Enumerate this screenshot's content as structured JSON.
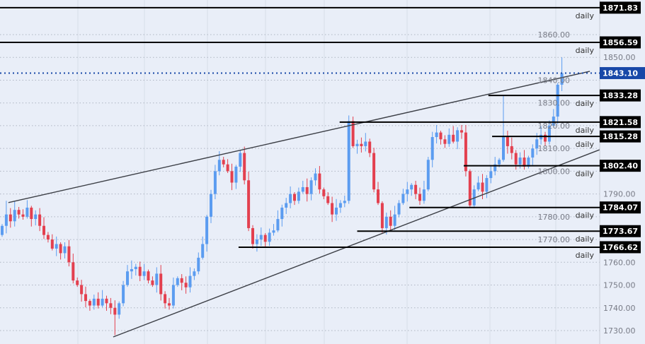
{
  "chart_data": {
    "type": "candlestick",
    "title": "",
    "xlabel": "",
    "ylabel": "",
    "ylim": [
      1726,
      1875
    ],
    "grid": true,
    "y_ticks": [
      "1730.00",
      "1740.00",
      "1750.00",
      "1760.00",
      "1770.00",
      "1780.00",
      "1790.00",
      "1800.00",
      "1810.00",
      "1820.00",
      "1830.00",
      "1840.00",
      "1850.00",
      "1860.00"
    ],
    "closes": [
      1776,
      1781,
      1778,
      1783,
      1781,
      1780,
      1784,
      1779,
      1781,
      1776,
      1772,
      1770,
      1766,
      1768,
      1764,
      1767,
      1760,
      1752,
      1750,
      1746,
      1743,
      1741,
      1744,
      1741,
      1744,
      1742,
      1740,
      1737,
      1742,
      1750,
      1756,
      1757,
      1758,
      1754,
      1756,
      1752,
      1750,
      1755,
      1746,
      1742,
      1741,
      1750,
      1753,
      1751,
      1749,
      1754,
      1756,
      1762,
      1768,
      1780,
      1790,
      1800,
      1805,
      1803,
      1800,
      1795,
      1802,
      1808,
      1796,
      1775,
      1768,
      1770,
      1772,
      1769,
      1773,
      1774,
      1779,
      1784,
      1786,
      1790,
      1787,
      1791,
      1793,
      1790,
      1796,
      1799,
      1792,
      1789,
      1786,
      1781,
      1784,
      1786,
      1787,
      1822,
      1811,
      1812,
      1811,
      1813,
      1808,
      1792,
      1786,
      1775,
      1780,
      1776,
      1781,
      1786,
      1790,
      1792,
      1794,
      1790,
      1787,
      1792,
      1805,
      1815,
      1817,
      1814,
      1812,
      1816,
      1813,
      1818,
      1817,
      1800,
      1785,
      1792,
      1795,
      1791,
      1797,
      1800,
      1803,
      1805,
      1815,
      1811,
      1808,
      1803,
      1806,
      1802,
      1806,
      1810,
      1814,
      1816,
      1813,
      1820,
      1824,
      1838,
      1843.1
    ],
    "first_open": 1772,
    "wick_overrides": [
      {
        "i": 1,
        "high": 1787
      },
      {
        "i": 27,
        "low": 1728
      },
      {
        "i": 57,
        "high": 1809
      },
      {
        "i": 60,
        "low": 1766
      },
      {
        "i": 83,
        "high": 1824.5
      },
      {
        "i": 84,
        "high": 1824
      },
      {
        "i": 91,
        "low": 1773
      },
      {
        "i": 112,
        "low": 1784
      },
      {
        "i": 120,
        "high": 1833.3
      },
      {
        "i": 134,
        "high": 1850
      }
    ],
    "trendlines": [
      {
        "name": "upper-channel-line",
        "from": {
          "bar": 1.5,
          "price": 1786.2
        },
        "to": {
          "bar": 140.7,
          "price": 1843.9
        }
      },
      {
        "name": "lower-channel-line",
        "from": {
          "bar": 26.6,
          "price": 1727.2
        },
        "to": {
          "bar": 143,
          "price": 1809.4
        }
      }
    ],
    "levels": [
      {
        "price": 1871.83,
        "label": "1871.83",
        "tag": "daily",
        "from_bar": -1
      },
      {
        "price": 1856.59,
        "label": "1856.59",
        "tag": "daily",
        "from_bar": -1
      },
      {
        "price": 1833.28,
        "label": "1833.28",
        "tag": "daily",
        "from_bar": 116.4
      },
      {
        "price": 1821.58,
        "label": "1821.58",
        "tag": "daily",
        "from_bar": 80.8
      },
      {
        "price": 1815.28,
        "label": "1815.28",
        "tag": "daily",
        "from_bar": 117.3
      },
      {
        "price": 1802.4,
        "label": "1802.40",
        "tag": "daily",
        "from_bar": 110.5
      },
      {
        "price": 1784.07,
        "label": "1784.07",
        "tag": "daily",
        "from_bar": 97.5
      },
      {
        "price": 1773.67,
        "label": "1773.67",
        "tag": "daily",
        "from_bar": 85
      },
      {
        "price": 1766.62,
        "label": "1766.62",
        "tag": "daily",
        "from_bar": 56.6
      }
    ],
    "current_price": {
      "price": 1843.1,
      "label": "1843.10"
    },
    "colors": {
      "up": "#5b9cf0",
      "down": "#e3404f",
      "background": "#e9eef8",
      "current": "#1848a8",
      "level": "#000000"
    }
  }
}
